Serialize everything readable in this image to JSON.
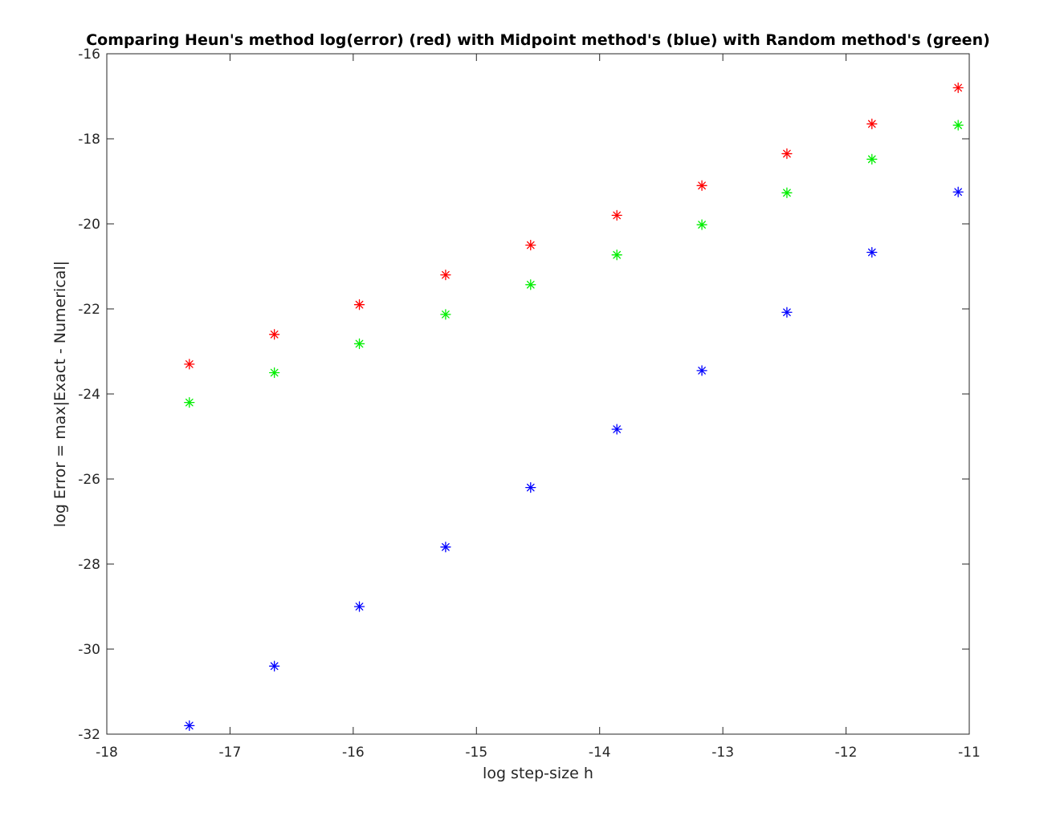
{
  "chart_data": {
    "type": "scatter",
    "title": "Comparing Heun's method log(error) (red) with Midpoint method's (blue) with Random method's (green)",
    "xlabel": "log step-size h",
    "ylabel": "log Error = max|Exact - Numerical|",
    "xlim": [
      -18,
      -11
    ],
    "ylim": [
      -32,
      -16
    ],
    "xticks": [
      -18,
      -17,
      -16,
      -15,
      -14,
      -13,
      -12,
      -11
    ],
    "yticks": [
      -32,
      -30,
      -28,
      -26,
      -24,
      -22,
      -20,
      -18,
      -16
    ],
    "grid": false,
    "marker": "asterisk",
    "x": [
      -17.33,
      -16.64,
      -15.95,
      -15.25,
      -14.56,
      -13.86,
      -13.17,
      -12.48,
      -11.79,
      -11.09
    ],
    "series": [
      {
        "color": "#ff0000",
        "values": [
          -23.3,
          -22.6,
          -21.9,
          -21.2,
          -20.5,
          -19.8,
          -19.1,
          -18.35,
          -17.65,
          -16.8
        ]
      },
      {
        "color": "#00ee00",
        "values": [
          -24.2,
          -23.5,
          -22.82,
          -22.13,
          -21.43,
          -20.73,
          -20.02,
          -19.27,
          -18.48,
          -17.68
        ]
      },
      {
        "color": "#0000ff",
        "values": [
          -31.8,
          -30.4,
          -29.0,
          -27.6,
          -26.2,
          -24.83,
          -23.45,
          -22.08,
          -20.67,
          -19.25
        ]
      }
    ]
  }
}
